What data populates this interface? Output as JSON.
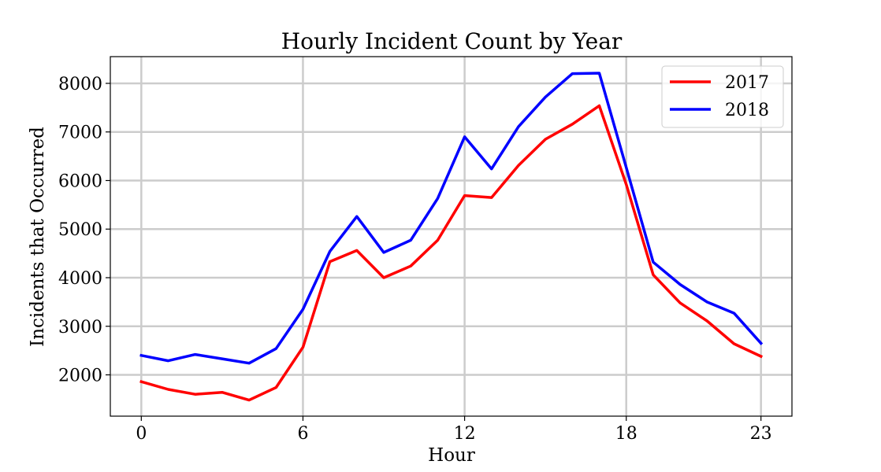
{
  "chart_data": {
    "type": "line",
    "title": "Hourly Incident Count by Year",
    "xlabel": "Hour",
    "ylabel": "Incidents that Occurred",
    "x": [
      0,
      1,
      2,
      3,
      4,
      5,
      6,
      7,
      8,
      9,
      10,
      11,
      12,
      13,
      14,
      15,
      16,
      17,
      18,
      19,
      20,
      21,
      22,
      23
    ],
    "xticks": [
      0,
      6,
      12,
      18,
      23
    ],
    "yticks": [
      2000,
      3000,
      4000,
      5000,
      6000,
      7000,
      8000
    ],
    "xlim": [
      -1.15,
      24.15
    ],
    "ylim": [
      1150,
      8550
    ],
    "grid": true,
    "legend_position": "top-right",
    "series": [
      {
        "name": "2017",
        "color": "#ff0000",
        "values": [
          1860,
          1700,
          1600,
          1640,
          1480,
          1740,
          2570,
          4330,
          4560,
          4000,
          4240,
          4770,
          5690,
          5650,
          6310,
          6850,
          7160,
          7540,
          5920,
          4060,
          3480,
          3110,
          2640,
          2380
        ]
      },
      {
        "name": "2018",
        "color": "#0000ff",
        "values": [
          2400,
          2290,
          2420,
          2330,
          2240,
          2540,
          3350,
          4540,
          5260,
          4520,
          4770,
          5630,
          6900,
          6240,
          7110,
          7720,
          8200,
          8210,
          6270,
          4320,
          3860,
          3500,
          3270,
          2650
        ]
      }
    ]
  }
}
